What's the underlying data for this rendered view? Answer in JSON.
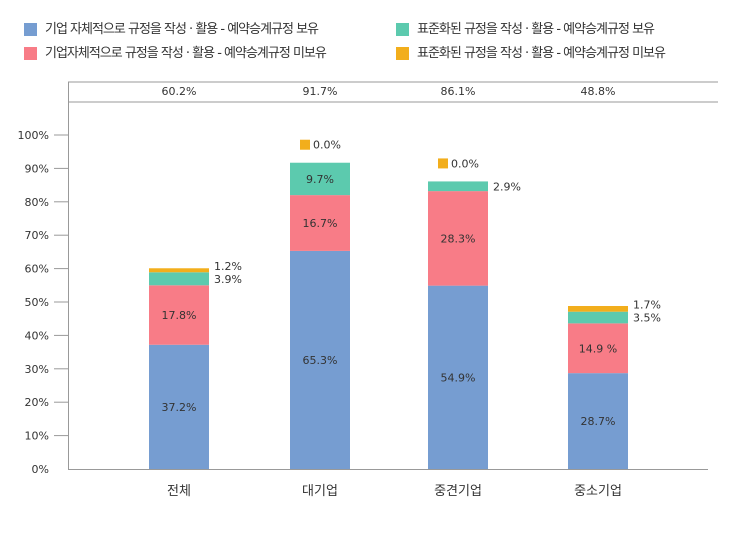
{
  "chart_data": {
    "type": "bar",
    "stacked": true,
    "categories": [
      "전체",
      "대기업",
      "중견기업",
      "중소기업"
    ],
    "totals": [
      "60.2%",
      "91.7%",
      "86.1%",
      "48.8%"
    ],
    "series": [
      {
        "name": "기업 자체적으로 규정을 작성 · 활용 - 예약승계규정 보유",
        "color": "#769dd1",
        "values": [
          37.2,
          65.3,
          54.9,
          28.7
        ],
        "labels": [
          "37.2%",
          "65.3%",
          "54.9%",
          "28.7%"
        ]
      },
      {
        "name": "기업자체적으로 규정을 작성 · 활용 - 예약승계규정 미보유",
        "color": "#f87c87",
        "values": [
          17.8,
          16.7,
          28.3,
          14.9
        ],
        "labels": [
          "17.8%",
          "16.7%",
          "28.3%",
          "14.9 %"
        ]
      },
      {
        "name": "표준화된 규정을 작성 · 활용 - 예약승계규정 보유",
        "color": "#5ccaae",
        "values": [
          3.9,
          9.7,
          2.9,
          3.5
        ],
        "labels": [
          "3.9%",
          "9.7%",
          "2.9%",
          "3.5%"
        ]
      },
      {
        "name": "표준화된 규정을 작성 · 활용 - 예약승계규정 미보유",
        "color": "#f2ae1c",
        "values": [
          1.2,
          0.0,
          0.0,
          1.7
        ],
        "labels": [
          "1.2%",
          "0.0%",
          "0.0%",
          "1.7%"
        ]
      }
    ],
    "yticks": [
      "0%",
      "10%",
      "20%",
      "30%",
      "40%",
      "50%",
      "60%",
      "70%",
      "80%",
      "90%",
      "100%"
    ],
    "ylim": [
      0,
      100
    ],
    "grid": false,
    "legend_position": "top"
  }
}
